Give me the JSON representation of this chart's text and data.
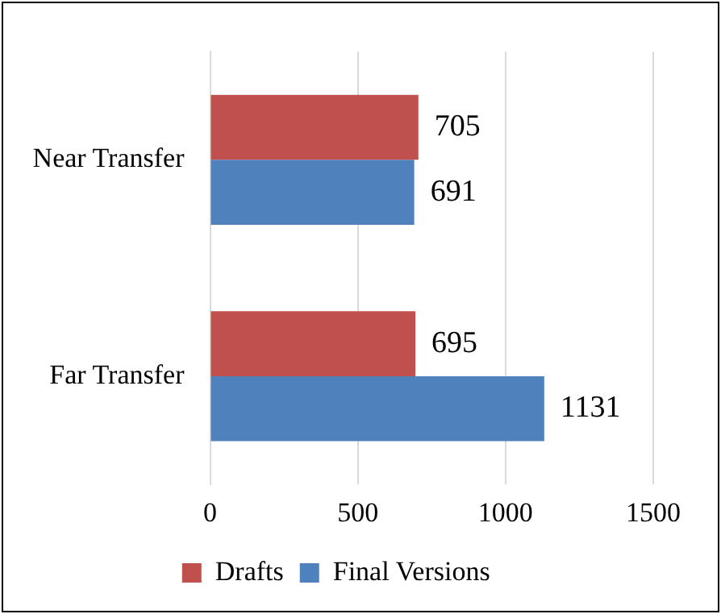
{
  "chart_data": {
    "type": "bar",
    "orientation": "horizontal",
    "categories": [
      "Near Transfer",
      "Far Transfer"
    ],
    "series": [
      {
        "name": "Drafts",
        "color": "#c0504d",
        "values": [
          705,
          695
        ]
      },
      {
        "name": "Final Versions",
        "color": "#4f81bd",
        "values": [
          691,
          1131
        ]
      }
    ],
    "xlim": [
      0,
      1500
    ],
    "xticks": [
      0,
      500,
      1000,
      1500
    ],
    "grid": "x",
    "legend": "bottom",
    "data_labels": true
  }
}
